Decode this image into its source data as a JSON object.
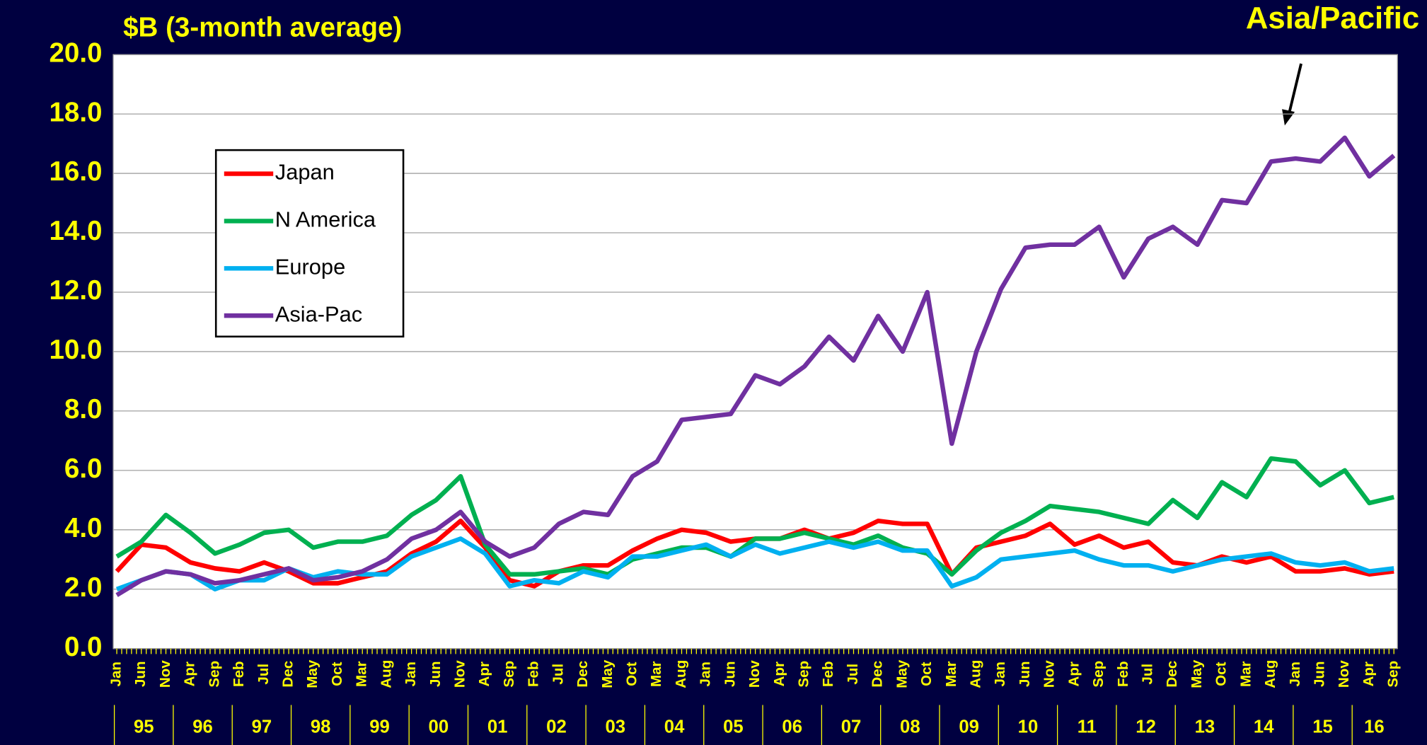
{
  "chart_data": {
    "type": "line",
    "title": "$B (3-month average)",
    "annotation": "Asia/Pacific",
    "categories": [
      "Jan",
      "Jun",
      "Nov",
      "Apr",
      "Sep",
      "Feb",
      "Jul",
      "Dec",
      "May",
      "Oct",
      "Mar",
      "Aug",
      "Jan",
      "Jun",
      "Nov",
      "Apr",
      "Sep",
      "Feb",
      "Jul",
      "Dec",
      "May",
      "Oct",
      "Mar",
      "Aug",
      "Jan",
      "Jun",
      "Nov",
      "Apr",
      "Sep",
      "Feb",
      "Jul",
      "Dec",
      "May",
      "Oct",
      "Mar",
      "Aug",
      "Jan",
      "Jun",
      "Nov",
      "Apr",
      "Sep",
      "Feb",
      "Jul",
      "Dec",
      "May",
      "Oct",
      "Mar",
      "Aug",
      "Jan",
      "Jun",
      "Nov",
      "Apr",
      "Sep"
    ],
    "years": [
      "95",
      "96",
      "97",
      "98",
      "99",
      "00",
      "01",
      "02",
      "03",
      "04",
      "05",
      "06",
      "07",
      "08",
      "09",
      "10",
      "11",
      "12",
      "13",
      "14",
      "15",
      "16"
    ],
    "series": [
      {
        "name": "Japan",
        "color": "#ff0000",
        "values": [
          2.6,
          3.5,
          3.4,
          2.9,
          2.7,
          2.6,
          2.9,
          2.6,
          2.2,
          2.2,
          2.4,
          2.6,
          3.2,
          3.6,
          4.3,
          3.4,
          2.3,
          2.1,
          2.6,
          2.8,
          2.8,
          3.3,
          3.7,
          4.0,
          3.9,
          3.6,
          3.7,
          3.7,
          4.0,
          3.7,
          3.9,
          4.3,
          4.2,
          4.2,
          2.5,
          3.4,
          3.6,
          3.8,
          4.2,
          3.5,
          3.8,
          3.4,
          3.6,
          2.9,
          2.8,
          3.1,
          2.9,
          3.1,
          2.6,
          2.6,
          2.7,
          2.5,
          2.6
        ]
      },
      {
        "name": "N America",
        "color": "#00b050",
        "values": [
          3.1,
          3.6,
          4.5,
          3.9,
          3.2,
          3.5,
          3.9,
          4.0,
          3.4,
          3.6,
          3.6,
          3.8,
          4.5,
          5.0,
          5.8,
          3.5,
          2.5,
          2.5,
          2.6,
          2.7,
          2.5,
          3.0,
          3.2,
          3.4,
          3.4,
          3.1,
          3.7,
          3.7,
          3.9,
          3.7,
          3.5,
          3.8,
          3.4,
          3.2,
          2.5,
          3.3,
          3.9,
          4.3,
          4.8,
          4.7,
          4.6,
          4.4,
          4.2,
          5.0,
          4.4,
          5.6,
          5.1,
          6.4,
          6.3,
          5.5,
          6.0,
          4.9,
          5.1
        ]
      },
      {
        "name": "Europe",
        "color": "#00b0f0",
        "values": [
          2.0,
          2.3,
          2.6,
          2.5,
          2.0,
          2.3,
          2.3,
          2.7,
          2.4,
          2.6,
          2.5,
          2.5,
          3.1,
          3.4,
          3.7,
          3.2,
          2.1,
          2.3,
          2.2,
          2.6,
          2.4,
          3.1,
          3.1,
          3.3,
          3.5,
          3.1,
          3.5,
          3.2,
          3.4,
          3.6,
          3.4,
          3.6,
          3.3,
          3.3,
          2.1,
          2.4,
          3.0,
          3.1,
          3.2,
          3.3,
          3.0,
          2.8,
          2.8,
          2.6,
          2.8,
          3.0,
          3.1,
          3.2,
          2.9,
          2.8,
          2.9,
          2.6,
          2.7
        ]
      },
      {
        "name": "Asia-Pac",
        "color": "#7030a0",
        "values": [
          1.8,
          2.3,
          2.6,
          2.5,
          2.2,
          2.3,
          2.5,
          2.7,
          2.3,
          2.4,
          2.6,
          3.0,
          3.7,
          4.0,
          4.6,
          3.6,
          3.1,
          3.4,
          4.2,
          4.6,
          4.5,
          5.8,
          6.3,
          7.7,
          7.8,
          7.9,
          9.2,
          8.9,
          9.5,
          10.5,
          9.7,
          11.2,
          10.0,
          12.0,
          6.9,
          10.0,
          12.1,
          13.5,
          13.6,
          13.6,
          14.2,
          12.5,
          13.8,
          14.2,
          13.6,
          15.1,
          15.0,
          16.4,
          16.5,
          16.4,
          17.2,
          15.9,
          16.6
        ]
      }
    ],
    "ylim": [
      0,
      20
    ],
    "yticks": [
      {
        "value": 0,
        "label": "0.0"
      },
      {
        "value": 2,
        "label": "2.0"
      },
      {
        "value": 4,
        "label": "4.0"
      },
      {
        "value": 6,
        "label": "6.0"
      },
      {
        "value": 8,
        "label": "8.0"
      },
      {
        "value": 10,
        "label": "10.0"
      },
      {
        "value": 12,
        "label": "12.0"
      },
      {
        "value": 14,
        "label": "14.0"
      },
      {
        "value": 16,
        "label": "16.0"
      },
      {
        "value": 18,
        "label": "18.0"
      },
      {
        "value": 20,
        "label": "20.0"
      }
    ],
    "grid": true,
    "legend": "upper left"
  }
}
